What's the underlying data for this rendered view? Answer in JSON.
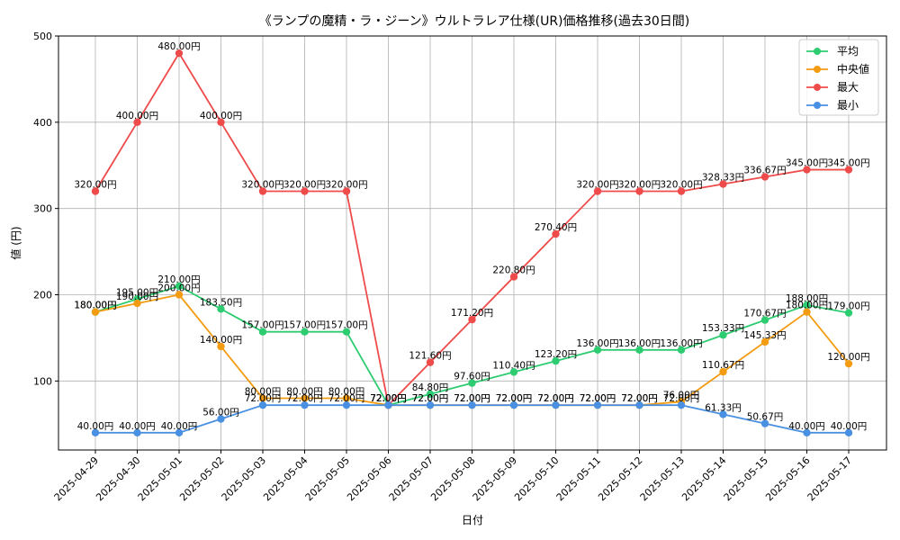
{
  "chart_data": {
    "type": "line",
    "title": "《ランプの魔精・ラ・ジーン》ウルトラレア仕様(UR)価格推移(過去30日間)",
    "xlabel": "日付",
    "ylabel": "値 (円)",
    "categories": [
      "2025-04-29",
      "2025-04-30",
      "2025-05-01",
      "2025-05-02",
      "2025-05-03",
      "2025-05-04",
      "2025-05-05",
      "2025-05-06",
      "2025-05-07",
      "2025-05-08",
      "2025-05-09",
      "2025-05-10",
      "2025-05-11",
      "2025-05-12",
      "2025-05-13",
      "2025-05-14",
      "2025-05-15",
      "2025-05-16",
      "2025-05-17"
    ],
    "ylim": [
      20,
      500
    ],
    "yticks": [
      100,
      200,
      300,
      400,
      500
    ],
    "grid": true,
    "legend_position": "top-right",
    "value_suffix": "円",
    "series": [
      {
        "name": "平均",
        "color": "#2ecc71",
        "values": [
          180,
          195,
          210,
          183.5,
          157,
          157,
          157,
          72,
          84.8,
          97.6,
          110.4,
          123.2,
          136,
          136,
          136,
          153.33,
          170.67,
          188,
          179
        ]
      },
      {
        "name": "中央値",
        "color": "#f39c12",
        "values": [
          180,
          190,
          200,
          140,
          80,
          80,
          80,
          72,
          72,
          72,
          72,
          72,
          72,
          72,
          76,
          110.67,
          145.33,
          180,
          120
        ]
      },
      {
        "name": "最大",
        "color": "#ef4b4b",
        "values": [
          320,
          400,
          480,
          400,
          320,
          320,
          320,
          72,
          121.6,
          171.2,
          220.8,
          270.4,
          320,
          320,
          320,
          328.33,
          336.67,
          345,
          345
        ]
      },
      {
        "name": "最小",
        "color": "#4a90e2",
        "values": [
          40,
          40,
          40,
          56,
          72,
          72,
          72,
          72,
          72,
          72,
          72,
          72,
          72,
          72,
          72,
          61.33,
          50.67,
          40,
          40
        ]
      }
    ]
  }
}
